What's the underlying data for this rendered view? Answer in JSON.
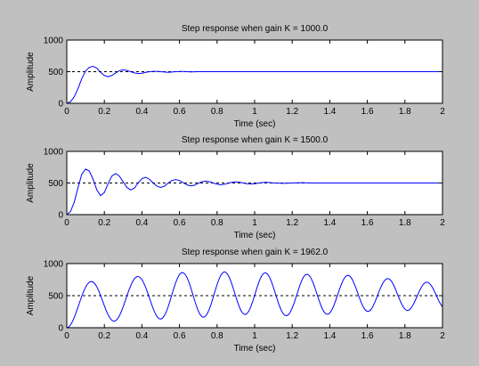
{
  "background_color": "#c0c0c0",
  "axes_color": "#ffffff",
  "line_color": "#0000ff",
  "reference_line_color": "#000000",
  "chart_data": [
    {
      "type": "line",
      "title": "Step response when gain K = 1000.0",
      "xlabel": "Time (sec)",
      "ylabel": "Amplitude",
      "xlim": [
        0,
        2
      ],
      "ylim": [
        0,
        1000
      ],
      "xticks": [
        0,
        0.2,
        0.4,
        0.6,
        0.8,
        1,
        1.2,
        1.4,
        1.6,
        1.8,
        2
      ],
      "xtick_labels": [
        "0",
        "0.2",
        "0.4",
        "0.6",
        "0.8",
        "1",
        "1.2",
        "1.4",
        "1.6",
        "1.8",
        "2"
      ],
      "yticks": [
        0,
        500,
        1000
      ],
      "ytick_labels": [
        "0",
        "500",
        "1000"
      ],
      "grid": false,
      "reference_line": {
        "y": 500,
        "style": "dashed"
      },
      "series": [
        {
          "x": [
            0,
            0.02,
            0.04,
            0.06,
            0.08,
            0.1,
            0.12,
            0.14,
            0.16,
            0.18,
            0.2,
            0.22,
            0.24,
            0.26,
            0.28,
            0.3,
            0.32,
            0.34,
            0.36,
            0.38,
            0.4,
            0.42,
            0.44,
            0.46,
            0.48,
            0.5,
            0.52,
            0.54,
            0.56,
            0.58,
            0.6,
            0.62,
            0.64,
            0.66,
            0.7,
            0.8,
            0.9,
            1.0,
            1.2,
            1.4,
            1.6,
            1.8,
            2.0
          ],
          "y": [
            0,
            25,
            105,
            235,
            390,
            510,
            570,
            585,
            555,
            490,
            440,
            420,
            440,
            480,
            515,
            530,
            520,
            500,
            480,
            470,
            475,
            490,
            500,
            505,
            505,
            500,
            495,
            490,
            495,
            500,
            503,
            503,
            500,
            497,
            500,
            500,
            500,
            500,
            500,
            500,
            500,
            500,
            500
          ]
        }
      ]
    },
    {
      "type": "line",
      "title": "Step response when gain K = 1500.0",
      "xlabel": "Time (sec)",
      "ylabel": "Amplitude",
      "xlim": [
        0,
        2
      ],
      "ylim": [
        0,
        1000
      ],
      "xticks": [
        0,
        0.2,
        0.4,
        0.6,
        0.8,
        1,
        1.2,
        1.4,
        1.6,
        1.8,
        2
      ],
      "xtick_labels": [
        "0",
        "0.2",
        "0.4",
        "0.6",
        "0.8",
        "1",
        "1.2",
        "1.4",
        "1.6",
        "1.8",
        "2"
      ],
      "yticks": [
        0,
        500,
        1000
      ],
      "ytick_labels": [
        "0",
        "500",
        "1000"
      ],
      "grid": false,
      "reference_line": {
        "y": 500,
        "style": "dashed"
      },
      "series": [
        {
          "x": [
            0,
            0.02,
            0.04,
            0.06,
            0.08,
            0.1,
            0.12,
            0.14,
            0.16,
            0.18,
            0.2,
            0.22,
            0.24,
            0.26,
            0.28,
            0.3,
            0.32,
            0.34,
            0.36,
            0.38,
            0.4,
            0.42,
            0.44,
            0.46,
            0.48,
            0.5,
            0.52,
            0.54,
            0.56,
            0.58,
            0.6,
            0.62,
            0.64,
            0.66,
            0.68,
            0.7,
            0.72,
            0.74,
            0.76,
            0.78,
            0.8,
            0.82,
            0.84,
            0.86,
            0.88,
            0.9,
            0.92,
            0.94,
            0.96,
            0.98,
            1.0,
            1.02,
            1.04,
            1.06,
            1.08,
            1.1,
            1.15,
            1.2,
            1.25,
            1.3,
            1.4,
            1.5,
            1.6,
            1.7,
            1.8,
            1.9,
            2.0
          ],
          "y": [
            0,
            50,
            200,
            430,
            640,
            720,
            690,
            560,
            390,
            300,
            350,
            490,
            610,
            650,
            610,
            520,
            430,
            390,
            420,
            500,
            570,
            590,
            560,
            500,
            450,
            430,
            450,
            500,
            540,
            555,
            540,
            505,
            470,
            455,
            465,
            495,
            520,
            530,
            520,
            500,
            480,
            472,
            480,
            497,
            512,
            517,
            512,
            500,
            488,
            484,
            488,
            498,
            507,
            510,
            507,
            500,
            494,
            500,
            505,
            500,
            500,
            500,
            500,
            500,
            500,
            500,
            500
          ]
        }
      ]
    },
    {
      "type": "line",
      "title": "Step response when gain K = 1962.0",
      "xlabel": "Time (sec)",
      "ylabel": "Amplitude",
      "xlim": [
        0,
        2
      ],
      "ylim": [
        0,
        1000
      ],
      "xticks": [
        0,
        0.2,
        0.4,
        0.6,
        0.8,
        1,
        1.2,
        1.4,
        1.6,
        1.8,
        2
      ],
      "xtick_labels": [
        "0",
        "0.2",
        "0.4",
        "0.6",
        "0.8",
        "1",
        "1.2",
        "1.4",
        "1.6",
        "1.8",
        "2"
      ],
      "yticks": [
        0,
        500,
        1000
      ],
      "ytick_labels": [
        "0",
        "500",
        "1000"
      ],
      "grid": false,
      "reference_line": {
        "y": 500,
        "style": "dashed"
      },
      "series": [
        {
          "x": [
            0,
            0.01,
            0.02,
            0.03,
            0.04,
            0.05,
            0.06,
            0.07,
            0.08,
            0.09,
            0.1,
            0.11,
            0.12,
            0.13,
            0.14,
            0.15,
            0.16,
            0.17,
            0.18,
            0.19,
            0.2,
            0.21,
            0.22,
            0.23,
            0.24,
            0.25,
            0.26,
            0.27,
            0.28,
            0.29,
            0.3,
            0.31,
            0.32,
            0.33,
            0.34,
            0.35,
            0.36,
            0.37,
            0.38,
            0.39,
            0.4,
            0.41,
            0.42,
            0.43,
            0.44,
            0.45,
            0.46,
            0.47,
            0.48,
            0.49,
            0.5,
            0.51,
            0.52,
            0.53,
            0.54,
            0.55,
            0.56,
            0.57,
            0.58,
            0.59,
            0.6,
            0.61,
            0.62,
            0.63,
            0.64,
            0.65,
            0.66,
            0.67,
            0.68,
            0.69,
            0.7,
            0.71,
            0.72,
            0.73,
            0.74,
            0.75,
            0.76,
            0.77,
            0.78,
            0.79,
            0.8,
            0.81,
            0.82,
            0.83,
            0.84,
            0.85,
            0.86,
            0.87,
            0.88,
            0.89,
            0.9,
            0.91,
            0.92,
            0.93,
            0.94,
            0.95,
            0.96,
            0.97,
            0.98,
            0.99,
            1.0,
            1.01,
            1.02,
            1.03,
            1.04,
            1.05,
            1.06,
            1.07,
            1.08,
            1.09,
            1.1,
            1.11,
            1.12,
            1.13,
            1.14,
            1.15,
            1.16,
            1.17,
            1.18,
            1.19,
            1.2,
            1.21,
            1.22,
            1.23,
            1.24,
            1.25,
            1.26,
            1.27,
            1.28,
            1.29,
            1.3,
            1.31,
            1.32,
            1.33,
            1.34,
            1.35,
            1.36,
            1.37,
            1.38,
            1.39,
            1.4,
            1.41,
            1.42,
            1.43,
            1.44,
            1.45,
            1.46,
            1.47,
            1.48,
            1.49,
            1.5,
            1.51,
            1.52,
            1.53,
            1.54,
            1.55,
            1.56,
            1.57,
            1.58,
            1.59,
            1.6,
            1.61,
            1.62,
            1.63,
            1.64,
            1.65,
            1.66,
            1.67,
            1.68,
            1.69,
            1.7,
            1.71,
            1.72,
            1.73,
            1.74,
            1.75,
            1.76,
            1.77,
            1.78,
            1.79,
            1.8,
            1.81,
            1.82,
            1.83,
            1.84,
            1.85,
            1.86,
            1.87,
            1.88,
            1.89,
            1.9,
            1.91,
            1.92,
            1.93,
            1.94,
            1.95,
            1.96,
            1.97,
            1.98,
            1.99,
            2.0
          ],
          "y": [
            0,
            11,
            44,
            95,
            162,
            240,
            324,
            410,
            493,
            568,
            631,
            680,
            710,
            721,
            712,
            684,
            638,
            576,
            503,
            423,
            343,
            267,
            201,
            149,
            115,
            101,
            108,
            137,
            184,
            248,
            325,
            409,
            495,
            579,
            654,
            717,
            764,
            792,
            799,
            785,
            750,
            697,
            628,
            549,
            464,
            378,
            297,
            228,
            175,
            143,
            134,
            150,
            190,
            251,
            330,
            422,
            519,
            616,
            704,
            777,
            830,
            858,
            859,
            833,
            783,
            712,
            625,
            529,
            431,
            340,
            262,
            204,
            170,
            163,
            184,
            230,
            298,
            383,
            479,
            578,
            672,
            755,
            819,
            859,
            872,
            856,
            814,
            750,
            669,
            578,
            483,
            393,
            314,
            254,
            217,
            206,
            222,
            264,
            329,
            412,
            505,
            600,
            690,
            766,
            821,
            852,
            856,
            832,
            784,
            714,
            629,
            537,
            444,
            357,
            283,
            228,
            195,
            187,
            204,
            245,
            307,
            385,
            474,
            566,
            654,
            731,
            790,
            825,
            834,
            816,
            773,
            709,
            630,
            542,
            452,
            368,
            297,
            244,
            214,
            209,
            229,
            272,
            335,
            412,
            497,
            583,
            664,
            733,
            784,
            813,
            817,
            795,
            751,
            688,
            613,
            531,
            450,
            376,
            315,
            273,
            254,
            258,
            286,
            334,
            398,
            471,
            547,
            619,
            682,
            730,
            759,
            767,
            753,
            718,
            665,
            599,
            526,
            453,
            385,
            329,
            290,
            271,
            273,
            297,
            338,
            394,
            458,
            525,
            589,
            644,
            684,
            707,
            710,
            693,
            658,
            609,
            549,
            485,
            422,
            366,
            323
          ]
        }
      ]
    }
  ]
}
